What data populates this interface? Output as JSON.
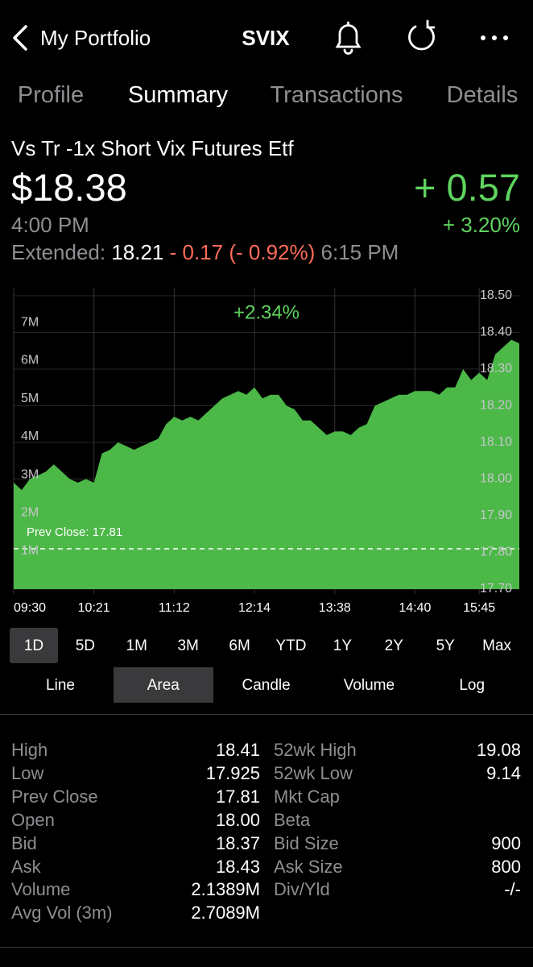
{
  "nav": {
    "back": "My Portfolio",
    "symbol": "SVIX"
  },
  "tabs": [
    "Profile",
    "Summary",
    "Transactions",
    "Details"
  ],
  "active_tab": "Summary",
  "quote": {
    "name": "Vs Tr -1x Short Vix Futures Etf",
    "price": "$18.38",
    "change": "+ 0.57",
    "change_pct": "+ 3.20%",
    "time": "4:00 PM",
    "extended_label": "Extended:",
    "extended_price": "18.21",
    "extended_change": "- 0.17 (- 0.92%)",
    "extended_time": "6:15 PM"
  },
  "chart_data": {
    "type": "area",
    "color": "#4cb848",
    "annotation": "+2.34%",
    "prev_close": 17.81,
    "prev_close_label": "Prev Close: 17.81",
    "categories": [
      "09:30",
      null,
      null,
      null,
      null,
      null,
      null,
      null,
      null,
      null,
      "10:21",
      null,
      null,
      null,
      null,
      null,
      null,
      null,
      null,
      null,
      "11:12",
      null,
      null,
      null,
      null,
      null,
      null,
      null,
      null,
      null,
      "12:14",
      null,
      null,
      null,
      null,
      null,
      null,
      null,
      null,
      null,
      "13:38",
      null,
      null,
      null,
      null,
      null,
      null,
      null,
      null,
      null,
      "14:40",
      null,
      null,
      null,
      null,
      null,
      null,
      null,
      "15:45",
      null,
      null,
      null,
      null,
      null
    ],
    "values": [
      17.99,
      17.97,
      18.0,
      18.01,
      18.02,
      18.04,
      18.02,
      18.0,
      17.99,
      18.0,
      17.99,
      18.07,
      18.08,
      18.1,
      18.09,
      18.08,
      18.09,
      18.1,
      18.11,
      18.15,
      18.17,
      18.16,
      18.17,
      18.16,
      18.18,
      18.2,
      18.22,
      18.23,
      18.24,
      18.23,
      18.25,
      18.22,
      18.23,
      18.23,
      18.2,
      18.19,
      18.16,
      18.16,
      18.14,
      18.12,
      18.13,
      18.13,
      18.12,
      18.14,
      18.15,
      18.2,
      18.21,
      18.22,
      18.23,
      18.23,
      18.24,
      18.24,
      18.24,
      18.23,
      18.25,
      18.25,
      18.3,
      18.27,
      18.29,
      18.27,
      18.34,
      18.36,
      18.38,
      18.37
    ],
    "ylim": [
      17.7,
      18.5
    ],
    "yticks": [
      {
        "value": 17.7,
        "label": "17.70"
      },
      {
        "value": 17.8,
        "label": "17.80"
      },
      {
        "value": 17.9,
        "label": "17.90"
      },
      {
        "value": 18.0,
        "label": "18.00"
      },
      {
        "value": 18.1,
        "label": "18.10"
      },
      {
        "value": 18.2,
        "label": "18.20"
      },
      {
        "value": 18.3,
        "label": "18.30"
      },
      {
        "value": 18.4,
        "label": "18.40"
      },
      {
        "value": 18.5,
        "label": "18.50"
      }
    ],
    "y2lim": [
      0,
      7700000
    ],
    "y2ticks": [
      {
        "value": 1000000,
        "label": "1M"
      },
      {
        "value": 2000000,
        "label": "2M"
      },
      {
        "value": 3000000,
        "label": "3M"
      },
      {
        "value": 4000000,
        "label": "4M"
      },
      {
        "value": 5000000,
        "label": "5M"
      },
      {
        "value": 6000000,
        "label": "6M"
      },
      {
        "value": 7000000,
        "label": "7M"
      }
    ],
    "grid": true
  },
  "ranges": [
    "1D",
    "5D",
    "1M",
    "3M",
    "6M",
    "YTD",
    "1Y",
    "2Y",
    "5Y",
    "Max"
  ],
  "active_range": "1D",
  "chart_types": [
    "Line",
    "Area",
    "Candle",
    "Volume",
    "Log"
  ],
  "active_chart_type": "Area",
  "stats": {
    "rows": [
      [
        "High",
        "18.41",
        "52wk High",
        "19.08"
      ],
      [
        "Low",
        "17.925",
        "52wk Low",
        "9.14"
      ],
      [
        "Prev Close",
        "17.81",
        "Mkt Cap"
      ],
      [
        "Open",
        "18.00",
        "Beta"
      ],
      [
        "Bid",
        "18.37",
        "Bid Size",
        "900"
      ],
      [
        "Ask",
        "18.43",
        "Ask Size",
        "800"
      ],
      [
        "Volume",
        "2.1389M",
        "Div/Yld",
        "-/-"
      ],
      [
        "Avg Vol (3m)",
        "2.7089M"
      ]
    ]
  }
}
